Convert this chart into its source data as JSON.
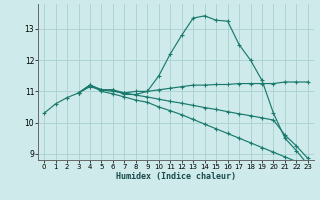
{
  "xlabel": "Humidex (Indice chaleur)",
  "bg_color": "#ceeaea",
  "grid_color": "#a8d0d0",
  "line_color": "#1a7a6e",
  "xlim": [
    -0.5,
    23.5
  ],
  "ylim": [
    8.8,
    13.8
  ],
  "yticks": [
    9,
    10,
    11,
    12,
    13
  ],
  "xticks": [
    0,
    1,
    2,
    3,
    4,
    5,
    6,
    7,
    8,
    9,
    10,
    11,
    12,
    13,
    14,
    15,
    16,
    17,
    18,
    19,
    20,
    21,
    22,
    23
  ],
  "lines": [
    {
      "x": [
        0,
        1,
        2,
        3,
        4,
        5,
        6,
        7,
        8,
        9,
        10,
        11,
        12,
        13,
        14,
        15,
        16,
        17,
        18,
        19,
        20,
        21,
        22,
        23
      ],
      "y": [
        10.3,
        10.6,
        10.8,
        10.95,
        11.2,
        11.05,
        11.05,
        10.9,
        10.9,
        11.0,
        11.5,
        12.2,
        12.8,
        13.35,
        13.42,
        13.28,
        13.25,
        12.5,
        12.0,
        11.35,
        10.3,
        9.5,
        9.1,
        8.65
      ]
    },
    {
      "x": [
        3,
        4,
        5,
        6,
        7,
        8,
        9,
        10,
        11,
        12,
        13,
        14,
        15,
        16,
        17,
        18,
        19,
        20,
        21,
        22,
        23
      ],
      "y": [
        10.95,
        11.15,
        11.05,
        11.05,
        10.95,
        11.0,
        11.0,
        11.05,
        11.1,
        11.15,
        11.2,
        11.2,
        11.22,
        11.22,
        11.25,
        11.25,
        11.25,
        11.25,
        11.3,
        11.3,
        11.3
      ]
    },
    {
      "x": [
        3,
        4,
        5,
        6,
        7,
        8,
        9,
        10,
        11,
        12,
        13,
        14,
        15,
        16,
        17,
        18,
        19,
        20,
        21,
        22,
        23
      ],
      "y": [
        10.95,
        11.2,
        11.05,
        11.0,
        10.95,
        10.88,
        10.82,
        10.75,
        10.68,
        10.62,
        10.55,
        10.48,
        10.42,
        10.35,
        10.28,
        10.22,
        10.15,
        10.08,
        9.6,
        9.25,
        8.85
      ]
    },
    {
      "x": [
        3,
        4,
        5,
        6,
        7,
        8,
        9,
        10,
        11,
        12,
        13,
        14,
        15,
        16,
        17,
        18,
        19,
        20,
        21,
        22,
        23
      ],
      "y": [
        10.95,
        11.2,
        11.0,
        10.92,
        10.82,
        10.72,
        10.65,
        10.5,
        10.38,
        10.25,
        10.1,
        9.95,
        9.8,
        9.65,
        9.5,
        9.35,
        9.2,
        9.05,
        8.9,
        8.75,
        8.6
      ]
    }
  ]
}
